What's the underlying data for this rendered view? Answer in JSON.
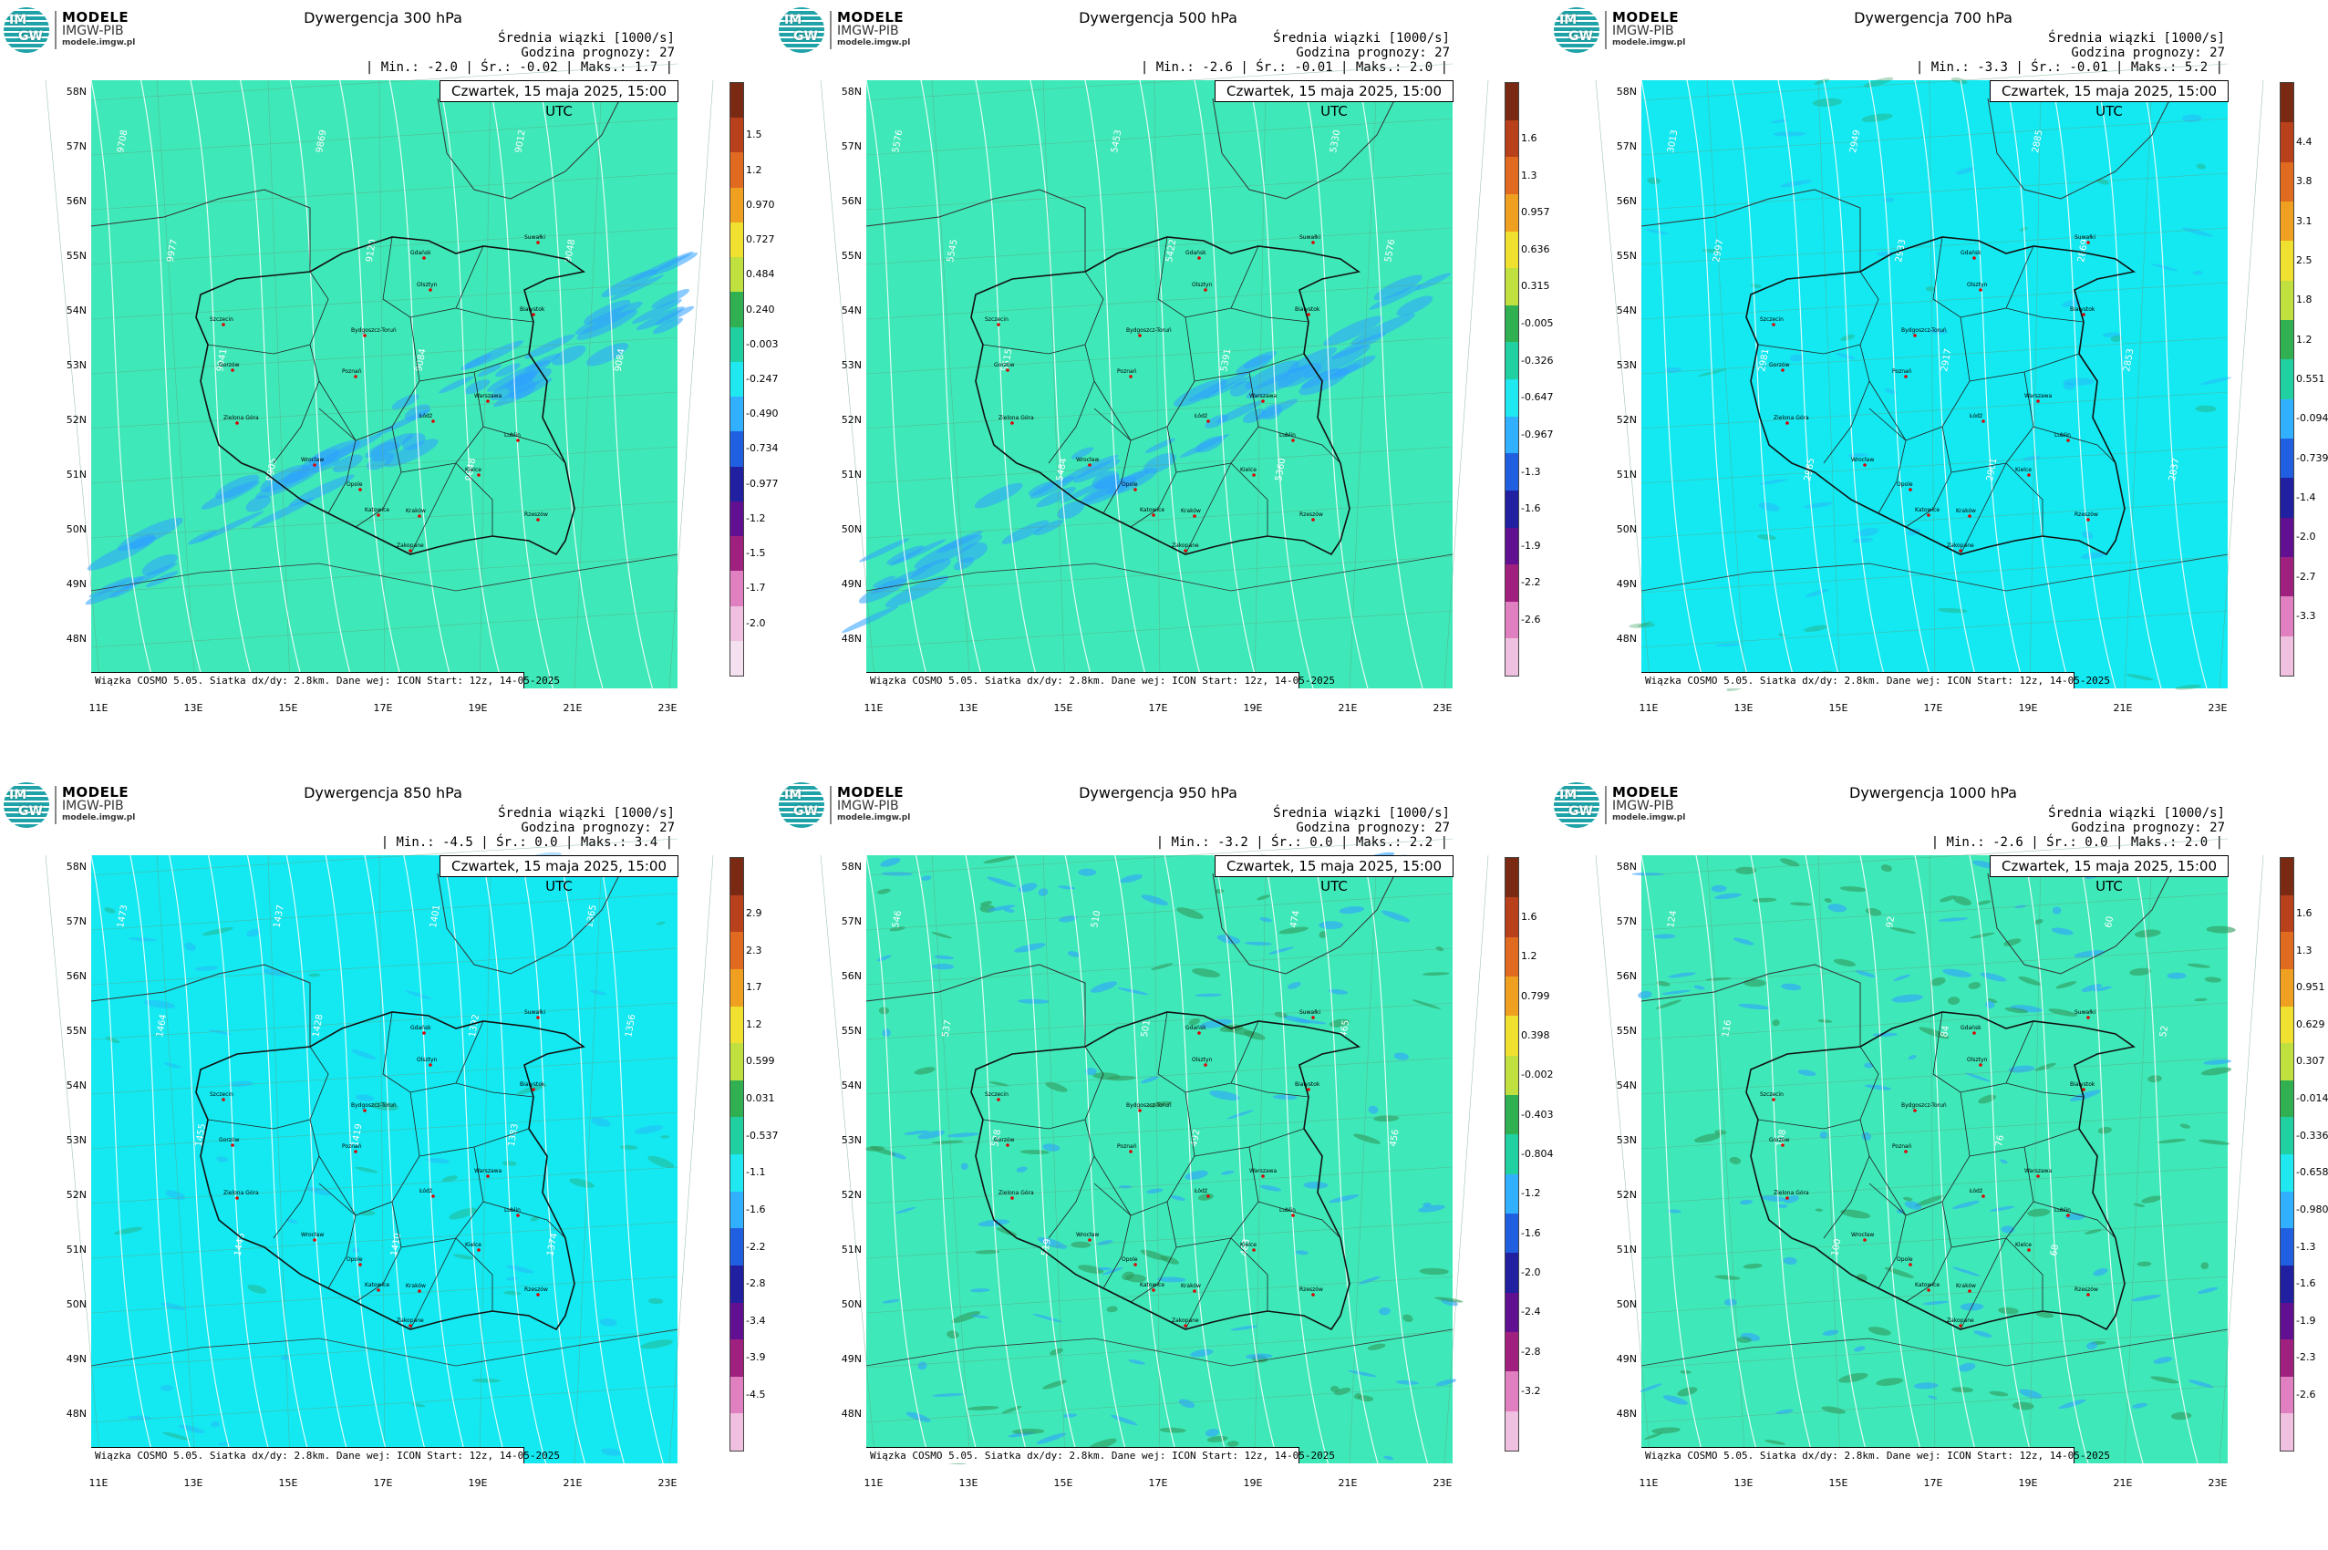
{
  "logo": {
    "line1": "MODELE",
    "line2": "IMGW-PIB",
    "line3": "modele.imgw.pl",
    "im": "IM",
    "gw": "GW"
  },
  "header": {
    "subtitle": "Średnia wiązki [1000/s]",
    "forecast": "Godzina prognozy: 27",
    "date": "Czwartek, 15 maja 2025, 15:00 UTC",
    "footer": "Wiązka COSMO 5.05. Siatka dx/dy: 2.8km. Dane wej: ICON Start: 12z, 14-05-2025"
  },
  "lat_labels": [
    "58N",
    "57N",
    "56N",
    "55N",
    "54N",
    "53N",
    "52N",
    "51N",
    "50N",
    "49N",
    "48N"
  ],
  "lon_labels": [
    "11E",
    "13E",
    "15E",
    "17E",
    "19E",
    "21E",
    "23E"
  ],
  "cities": [
    "Gdańsk",
    "Olsztyn",
    "Suwałki",
    "Szczecin",
    "Białystok",
    "Bydgoszcz-Toruń",
    "Gorzów",
    "Poznań",
    "Warszawa",
    "Zielona Góra",
    "Łódź",
    "Lublin",
    "Wrocław",
    "Kielce",
    "Opole",
    "Katowice",
    "Kraków",
    "Rzeszów",
    "Zakopane"
  ],
  "colors": {
    "green_bg": "#3fe8b8",
    "cyan_bg": "#14e8f0",
    "conv_blue": "#2ea0ff",
    "div_green": "#2e9a5a"
  },
  "panels": [
    {
      "title": "Dywergencja 300 hPa",
      "stats": "| Min.:    -2.0 | Śr.:    -0.02 | Maks.:    1.7 |",
      "bg": "#3fe8b8",
      "colorbar": [
        "1.5",
        "1.2",
        "0.970",
        "0.727",
        "0.484",
        "0.240",
        "-0.003",
        "-0.247",
        "-0.490",
        "-0.734",
        "-0.977",
        "-1.2",
        "-1.5",
        "-1.7",
        "-2.0"
      ],
      "contours": [
        "9708",
        "9977",
        "9941",
        "9905",
        "9869",
        "9120",
        "9084",
        "9048",
        "9012",
        "9048",
        "9084"
      ]
    },
    {
      "title": "Dywergencja 500 hPa",
      "stats": "| Min.:    -2.6 | Śr.:    -0.01 | Maks.:    2.0 |",
      "bg": "#3fe8b8",
      "colorbar": [
        "1.6",
        "1.3",
        "0.957",
        "0.636",
        "0.315",
        "-0.005",
        "-0.326",
        "-0.647",
        "-0.967",
        "-1.3",
        "-1.6",
        "-1.9",
        "-2.2",
        "-2.6"
      ],
      "contours": [
        "5576",
        "5545",
        "5515",
        "5484",
        "5453",
        "5422",
        "5391",
        "5360",
        "5330",
        "5576"
      ]
    },
    {
      "title": "Dywergencja 700 hPa",
      "stats": "| Min.:    -3.3 | Śr.:    -0.01 | Maks.:    5.2 |",
      "bg": "#14e8f0",
      "colorbar": [
        "4.4",
        "3.8",
        "3.1",
        "2.5",
        "1.8",
        "1.2",
        "0.551",
        "-0.094",
        "-0.739",
        "-1.4",
        "-2.0",
        "-2.7",
        "-3.3"
      ],
      "contours": [
        "3013",
        "2997",
        "2981",
        "2965",
        "2949",
        "2933",
        "2917",
        "2901",
        "2885",
        "2869",
        "2853",
        "2837"
      ]
    },
    {
      "title": "Dywergencja 850 hPa",
      "stats": "| Min.:    -4.5 | Śr.:     0.0 | Maks.:    3.4 |",
      "bg": "#14e8f0",
      "colorbar": [
        "2.9",
        "2.3",
        "1.7",
        "1.2",
        "0.599",
        "0.031",
        "-0.537",
        "-1.1",
        "-1.6",
        "-2.2",
        "-2.8",
        "-3.4",
        "-3.9",
        "-4.5"
      ],
      "contours": [
        "1473",
        "1464",
        "1455",
        "1446",
        "1437",
        "1428",
        "1419",
        "1410",
        "1401",
        "1392",
        "1383",
        "1374",
        "1365",
        "1356"
      ]
    },
    {
      "title": "Dywergencja 950 hPa",
      "stats": "| Min.:    -3.2 | Śr.:     0.0 | Maks.:    2.2 |",
      "bg": "#3fe8b8",
      "colorbar": [
        "1.6",
        "1.2",
        "0.799",
        "0.398",
        "-0.002",
        "-0.403",
        "-0.804",
        "-1.2",
        "-1.6",
        "-2.0",
        "-2.4",
        "-2.8",
        "-3.2"
      ],
      "contours": [
        "546",
        "537",
        "528",
        "519",
        "510",
        "501",
        "492",
        "483",
        "474",
        "465",
        "456"
      ]
    },
    {
      "title": "Dywergencja 1000 hPa",
      "stats": "| Min.:    -2.6 | Śr.:     0.0 | Maks.:    2.0 |",
      "bg": "#3fe8b8",
      "colorbar": [
        "1.6",
        "1.3",
        "0.951",
        "0.629",
        "0.307",
        "-0.014",
        "-0.336",
        "-0.658",
        "-0.980",
        "-1.3",
        "-1.6",
        "-1.9",
        "-2.3",
        "-2.6"
      ],
      "contours": [
        "124",
        "116",
        "108",
        "100",
        "92",
        "84",
        "76",
        "68",
        "60",
        "52"
      ]
    }
  ]
}
